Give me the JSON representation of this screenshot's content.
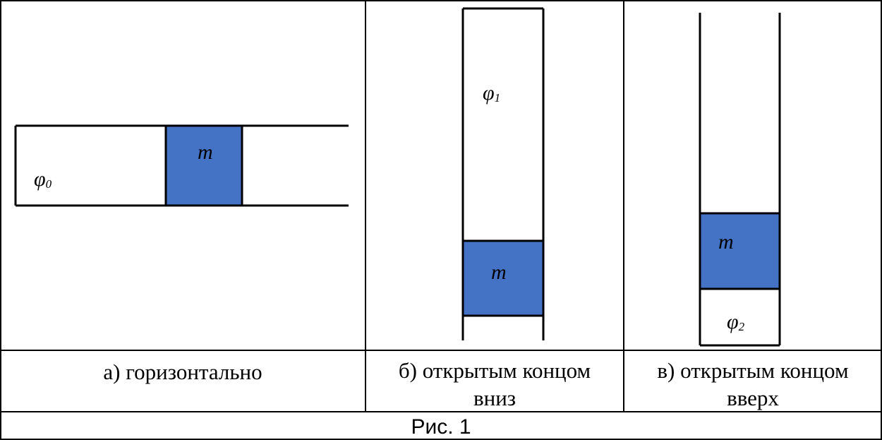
{
  "figure": {
    "colors": {
      "block": "#4472c4",
      "line": "#000000"
    },
    "panels": [
      {
        "id": "a",
        "label_mass": "m",
        "label_phi": "φ0",
        "caption": "а) горизонтально"
      },
      {
        "id": "b",
        "label_mass": "m",
        "label_phi": "φ1",
        "caption": "б) открытым концом вниз"
      },
      {
        "id": "c",
        "label_mass": "m",
        "label_phi": "φ2",
        "caption": "в) открытым концом вверх"
      }
    ],
    "caption_main": "Рис. 1"
  },
  "captions": {
    "a": "а) горизонтально",
    "b_line1": "б) открытым концом",
    "b_line2": "вниз",
    "c_line1": "в) открытым концом",
    "c_line2": "вверх",
    "main": "Рис. 1"
  }
}
